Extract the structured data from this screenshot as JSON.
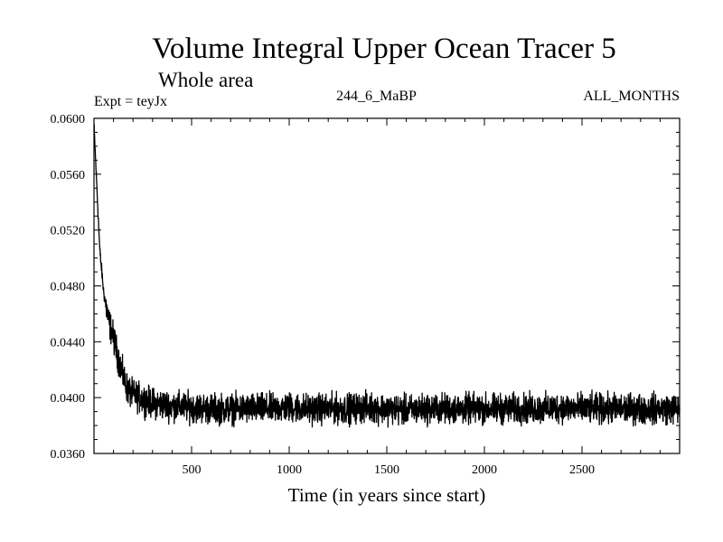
{
  "chart_data": {
    "type": "line",
    "title": "Volume Integral Upper Ocean Tracer 5",
    "subtitle": "Whole area",
    "annotations": {
      "expt": "Expt = teyJx",
      "run": "244_6_MaBP",
      "months": "ALL_MONTHS"
    },
    "xlabel": "Time (in years since start)",
    "ylabel": "",
    "xlim": [
      0,
      3000
    ],
    "ylim": [
      0.036,
      0.06
    ],
    "x_ticks": [
      500,
      1000,
      1500,
      2000,
      2500
    ],
    "x_tick_labels": [
      "500",
      "1000",
      "1500",
      "2000",
      "2500"
    ],
    "y_ticks": [
      0.036,
      0.04,
      0.044,
      0.048,
      0.052,
      0.056,
      0.06
    ],
    "y_tick_labels": [
      "0.0360",
      "0.0400",
      "0.0440",
      "0.0480",
      "0.0520",
      "0.0560",
      "0.0600"
    ],
    "grid": false,
    "series": [
      {
        "color": "#000000",
        "x": [
          0,
          10,
          20,
          30,
          50,
          75,
          100,
          125,
          150,
          175,
          200,
          250,
          300,
          400,
          500,
          600,
          700,
          800,
          900,
          1000,
          1100,
          1200,
          1300,
          1400,
          1500,
          1600,
          1700,
          1800,
          1900,
          2000,
          2100,
          2200,
          2300,
          2400,
          2500,
          2600,
          2700,
          2800,
          2900,
          3000
        ],
        "values": [
          0.0595,
          0.0565,
          0.0535,
          0.0505,
          0.0475,
          0.0455,
          0.0443,
          0.0428,
          0.0415,
          0.0405,
          0.0402,
          0.0399,
          0.0396,
          0.0394,
          0.0393,
          0.0392,
          0.0392,
          0.0392,
          0.0392,
          0.0393,
          0.0392,
          0.0392,
          0.0392,
          0.0393,
          0.0392,
          0.0391,
          0.0392,
          0.0392,
          0.0392,
          0.0392,
          0.0392,
          0.0392,
          0.0392,
          0.0393,
          0.0392,
          0.0392,
          0.0392,
          0.0392,
          0.0392,
          0.0392
        ],
        "noise_amplitude": 0.0009
      }
    ]
  }
}
